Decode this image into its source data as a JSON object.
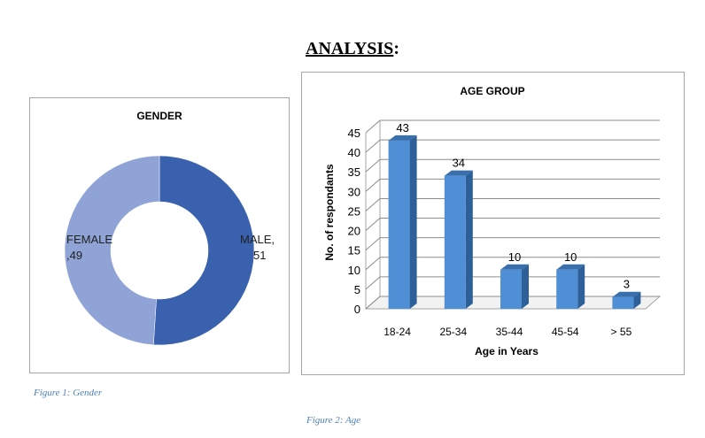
{
  "page": {
    "heading_main": "ANALYSIS",
    "heading_suffix": ":",
    "caption_gender": "Figure 1: Gender",
    "caption_age": "Figure 2: Age"
  },
  "chart_data": [
    {
      "type": "pie",
      "title": "GENDER",
      "categories": [
        "MALE",
        "FEMALE"
      ],
      "values": [
        51,
        49
      ],
      "labels": [
        "MALE,\n51",
        "FEMALE\n,49"
      ],
      "colors": [
        "#3a61ad",
        "#8fa3d6"
      ],
      "donut": true,
      "legend": "none"
    },
    {
      "type": "bar",
      "title": "AGE GROUP",
      "categories": [
        "18-24",
        "25-34",
        "35-44",
        "45-54",
        "> 55"
      ],
      "values": [
        43,
        34,
        10,
        10,
        3
      ],
      "xlabel": "Age in Years",
      "ylabel": "No. of respondants",
      "ylim": [
        0,
        45
      ],
      "yticks": [
        0,
        5,
        10,
        15,
        20,
        25,
        30,
        35,
        40,
        45
      ],
      "grid": true,
      "style": "3d-column",
      "color": "#4f8fd6",
      "legend": "none"
    }
  ]
}
